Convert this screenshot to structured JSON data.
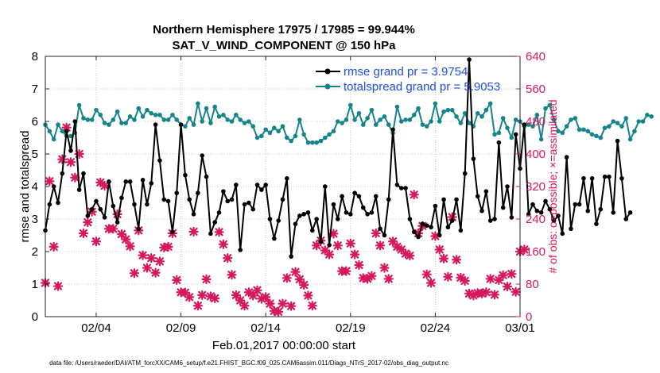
{
  "chart_data": {
    "type": "line",
    "title": "Northern Hemisphere 17975 / 17985 = 99.944%",
    "subtitle": "SAT_V_WIND_COMPONENT @ 150 hPa",
    "xlabel": "Feb.01,2017 00:00:00 start",
    "ylabel": "rmse and totalspread",
    "ylabel_right": "# of obs: o=possible; ×=assimilated",
    "footnote": "data file: /Users/raeder/DAI/ATM_forcXX/CAM6_setup/f.e21.FHIST_BGC.f09_025.CAM6assim.011/Diags_NTrS_2017-02/obs_diag_output.nc",
    "xlim": [
      1,
      29
    ],
    "ylim": [
      0,
      8
    ],
    "ylim_right": [
      0,
      640
    ],
    "x_ticks": [
      4,
      9,
      14,
      19,
      24,
      29
    ],
    "x_tick_labels": [
      "02/04",
      "02/09",
      "02/14",
      "02/19",
      "02/24",
      "03/01"
    ],
    "y_ticks": [
      0,
      1,
      2,
      3,
      4,
      5,
      6,
      7,
      8
    ],
    "y_ticks_right": [
      0,
      80,
      160,
      240,
      320,
      400,
      480,
      560,
      640
    ],
    "grid": true,
    "legend_position": "top-right",
    "series": [
      {
        "name": "rmse grand pr = 3.9754",
        "color": "#000000",
        "marker": "circle",
        "x_start": 1,
        "x_step": 0.25,
        "values": [
          2.65,
          3.45,
          4.0,
          3.5,
          4.4,
          5.7,
          5.1,
          6.0,
          3.9,
          4.4,
          3.1,
          3.3,
          3.55,
          3.3,
          3.05,
          4.15,
          3.4,
          2.9,
          3.65,
          4.15,
          4.15,
          3.45,
          2.7,
          4.2,
          3.45,
          4.1,
          5.9,
          4.8,
          3.6,
          3.55,
          2.6,
          3.8,
          5.9,
          4.35,
          3.6,
          3.15,
          3.8,
          4.95,
          4.3,
          2.55,
          2.9,
          3.2,
          3.85,
          3.55,
          3.6,
          4.05,
          2.05,
          3.45,
          3.5,
          3.3,
          4.05,
          3.9,
          4.05,
          3.0,
          2.4,
          2.95,
          3.6,
          4.25,
          1.85,
          2.85,
          3.1,
          3.15,
          3.2,
          2.65,
          3.0,
          2.3,
          4.0,
          2.2,
          3.45,
          3.0,
          3.7,
          3.2,
          3.15,
          3.8,
          3.7,
          3.35,
          3.15,
          3.2,
          3.7,
          2.7,
          2.5,
          3.6,
          5.75,
          4.05,
          3.95,
          3.95,
          3.0,
          2.6,
          2.45,
          2.85,
          2.8,
          2.75,
          3.4,
          2.5,
          3.6,
          2.75,
          2.95,
          3.6,
          2.65,
          4.4,
          7.9,
          4.85,
          3.7,
          3.25,
          3.85,
          2.95,
          3.0,
          5.35,
          3.35,
          4.0,
          3.05,
          5.6,
          4.55,
          5.9,
          3.15,
          3.45,
          3.25,
          3.2,
          3.55,
          3.3,
          2.95,
          3.1,
          2.55,
          4.9,
          2.7,
          3.45,
          3.45,
          4.25,
          3.25,
          4.25,
          2.85,
          3.3,
          4.3,
          4.3,
          3.2,
          5.4,
          4.25,
          3.0,
          3.2
        ]
      },
      {
        "name": "totalspread grand pr = 5.9053",
        "color": "#16858a",
        "marker": "circle",
        "x_start": 1,
        "x_step": 0.25,
        "values": [
          5.9,
          5.7,
          5.45,
          5.9,
          5.7,
          5.55,
          5.55,
          5.65,
          6.5,
          6.1,
          6.05,
          6.05,
          6.35,
          6.2,
          5.95,
          5.9,
          6.05,
          6.3,
          5.95,
          5.95,
          6.15,
          6.05,
          6.4,
          6.15,
          6.35,
          6.25,
          6.2,
          6.2,
          6.05,
          6.05,
          6.2,
          6.05,
          5.9,
          5.85,
          6.1,
          5.9,
          6.55,
          6.0,
          6.4,
          5.95,
          6.45,
          6.15,
          6.2,
          6.05,
          6.0,
          6.2,
          6.05,
          5.95,
          6.0,
          5.85,
          5.5,
          5.55,
          5.75,
          5.65,
          5.8,
          5.7,
          5.85,
          5.5,
          5.4,
          5.55,
          6.05,
          5.6,
          5.35,
          5.35,
          5.35,
          5.4,
          5.5,
          5.6,
          5.7,
          6.0,
          5.95,
          6.05,
          6.5,
          6.05,
          6.25,
          5.9,
          6.1,
          6.35,
          5.9,
          6.05,
          6.15,
          5.9,
          5.65,
          6.45,
          6.0,
          6.05,
          6.05,
          6.2,
          6.4,
          5.9,
          5.85,
          6.0,
          6.55,
          6.0,
          6.3,
          6.35,
          6.35,
          6.15,
          5.95,
          6.25,
          5.95,
          5.85,
          6.25,
          6.15,
          6.35,
          6.55,
          5.6,
          5.65,
          6.1,
          5.8,
          5.5,
          6.05,
          6.0,
          5.85,
          5.9,
          5.85,
          6.2,
          5.45,
          6.4,
          6.5,
          6.05,
          5.7,
          5.65,
          5.85,
          6.05,
          6.1,
          5.75,
          5.75,
          5.7,
          5.6,
          5.55,
          5.5,
          5.8,
          5.85,
          6.0,
          5.95,
          5.85,
          6.1,
          5.45,
          5.7,
          6.0,
          6.0,
          6.2,
          6.15
        ]
      }
    ],
    "obs_possible": {
      "name": "# of obs possible",
      "color": "#d6185c",
      "marker": "o"
    },
    "obs_assimilated": {
      "name": "# of obs assimilated",
      "color": "#d6185c",
      "marker": "×",
      "points": [
        [
          1.0,
          83
        ],
        [
          1.25,
          333
        ],
        [
          1.5,
          172
        ],
        [
          1.75,
          75
        ],
        [
          2.0,
          387
        ],
        [
          2.25,
          465
        ],
        [
          2.5,
          380
        ],
        [
          2.75,
          342
        ],
        [
          3.0,
          400
        ],
        [
          3.25,
          205
        ],
        [
          3.5,
          232
        ],
        [
          3.75,
          258
        ],
        [
          4.0,
          185
        ],
        [
          4.25,
          330
        ],
        [
          4.5,
          322
        ],
        [
          4.75,
          216
        ],
        [
          5.0,
          216
        ],
        [
          5.25,
          252
        ],
        [
          5.5,
          203
        ],
        [
          5.75,
          190
        ],
        [
          6.0,
          173
        ],
        [
          6.25,
          107
        ],
        [
          6.5,
          212
        ],
        [
          6.75,
          151
        ],
        [
          7.0,
          120
        ],
        [
          7.25,
          144
        ],
        [
          7.5,
          108
        ],
        [
          7.75,
          136
        ],
        [
          8.0,
          170
        ],
        [
          8.25,
          172
        ],
        [
          8.5,
          205
        ],
        [
          8.75,
          90
        ],
        [
          9.0,
          60
        ],
        [
          9.25,
          59
        ],
        [
          9.5,
          48
        ],
        [
          9.75,
          209
        ],
        [
          10.0,
          27
        ],
        [
          10.25,
          53
        ],
        [
          10.5,
          92
        ],
        [
          10.75,
          50
        ],
        [
          11.0,
          45
        ],
        [
          11.25,
          208
        ],
        [
          11.5,
          178
        ],
        [
          11.75,
          144
        ],
        [
          12.0,
          103
        ],
        [
          12.25,
          53
        ],
        [
          12.5,
          40
        ],
        [
          12.75,
          27
        ],
        [
          13.0,
          60
        ],
        [
          13.25,
          52
        ],
        [
          13.5,
          65
        ],
        [
          13.75,
          44
        ],
        [
          14.0,
          48
        ],
        [
          14.25,
          32
        ],
        [
          14.5,
          14
        ],
        [
          14.75,
          12
        ],
        [
          15.0,
          32
        ],
        [
          15.25,
          95
        ],
        [
          15.5,
          26
        ],
        [
          15.75,
          110
        ],
        [
          16.0,
          92
        ],
        [
          16.25,
          78
        ],
        [
          16.5,
          52
        ],
        [
          16.75,
          27
        ],
        [
          17.0,
          175
        ],
        [
          17.25,
          187
        ],
        [
          17.5,
          163
        ],
        [
          17.75,
          153
        ],
        [
          18.0,
          204
        ],
        [
          18.25,
          175
        ],
        [
          18.5,
          112
        ],
        [
          18.75,
          112
        ],
        [
          19.0,
          180
        ],
        [
          19.25,
          153
        ],
        [
          19.5,
          127
        ],
        [
          19.75,
          95
        ],
        [
          20.0,
          93
        ],
        [
          20.25,
          100
        ],
        [
          20.5,
          205
        ],
        [
          20.75,
          175
        ],
        [
          21.0,
          120
        ],
        [
          21.25,
          93
        ],
        [
          21.5,
          185
        ],
        [
          21.75,
          172
        ],
        [
          22.0,
          165
        ],
        [
          22.25,
          155
        ],
        [
          22.5,
          150
        ],
        [
          22.75,
          300
        ],
        [
          23.0,
          205
        ],
        [
          23.25,
          223
        ],
        [
          23.5,
          104
        ],
        [
          23.75,
          83
        ],
        [
          24.0,
          198
        ],
        [
          24.25,
          165
        ],
        [
          24.5,
          143
        ],
        [
          24.75,
          98
        ],
        [
          25.0,
          245
        ],
        [
          25.25,
          140
        ],
        [
          25.5,
          96
        ],
        [
          25.75,
          88
        ],
        [
          26.0,
          57
        ],
        [
          26.25,
          52
        ],
        [
          26.5,
          58
        ],
        [
          26.75,
          57
        ],
        [
          27.0,
          60
        ],
        [
          27.25,
          93
        ],
        [
          27.5,
          54
        ],
        [
          27.75,
          90
        ],
        [
          28.0,
          102
        ],
        [
          28.25,
          74
        ],
        [
          28.5,
          105
        ],
        [
          28.75,
          61
        ],
        [
          29.0,
          160
        ],
        [
          29.25,
          165
        ]
      ]
    }
  }
}
